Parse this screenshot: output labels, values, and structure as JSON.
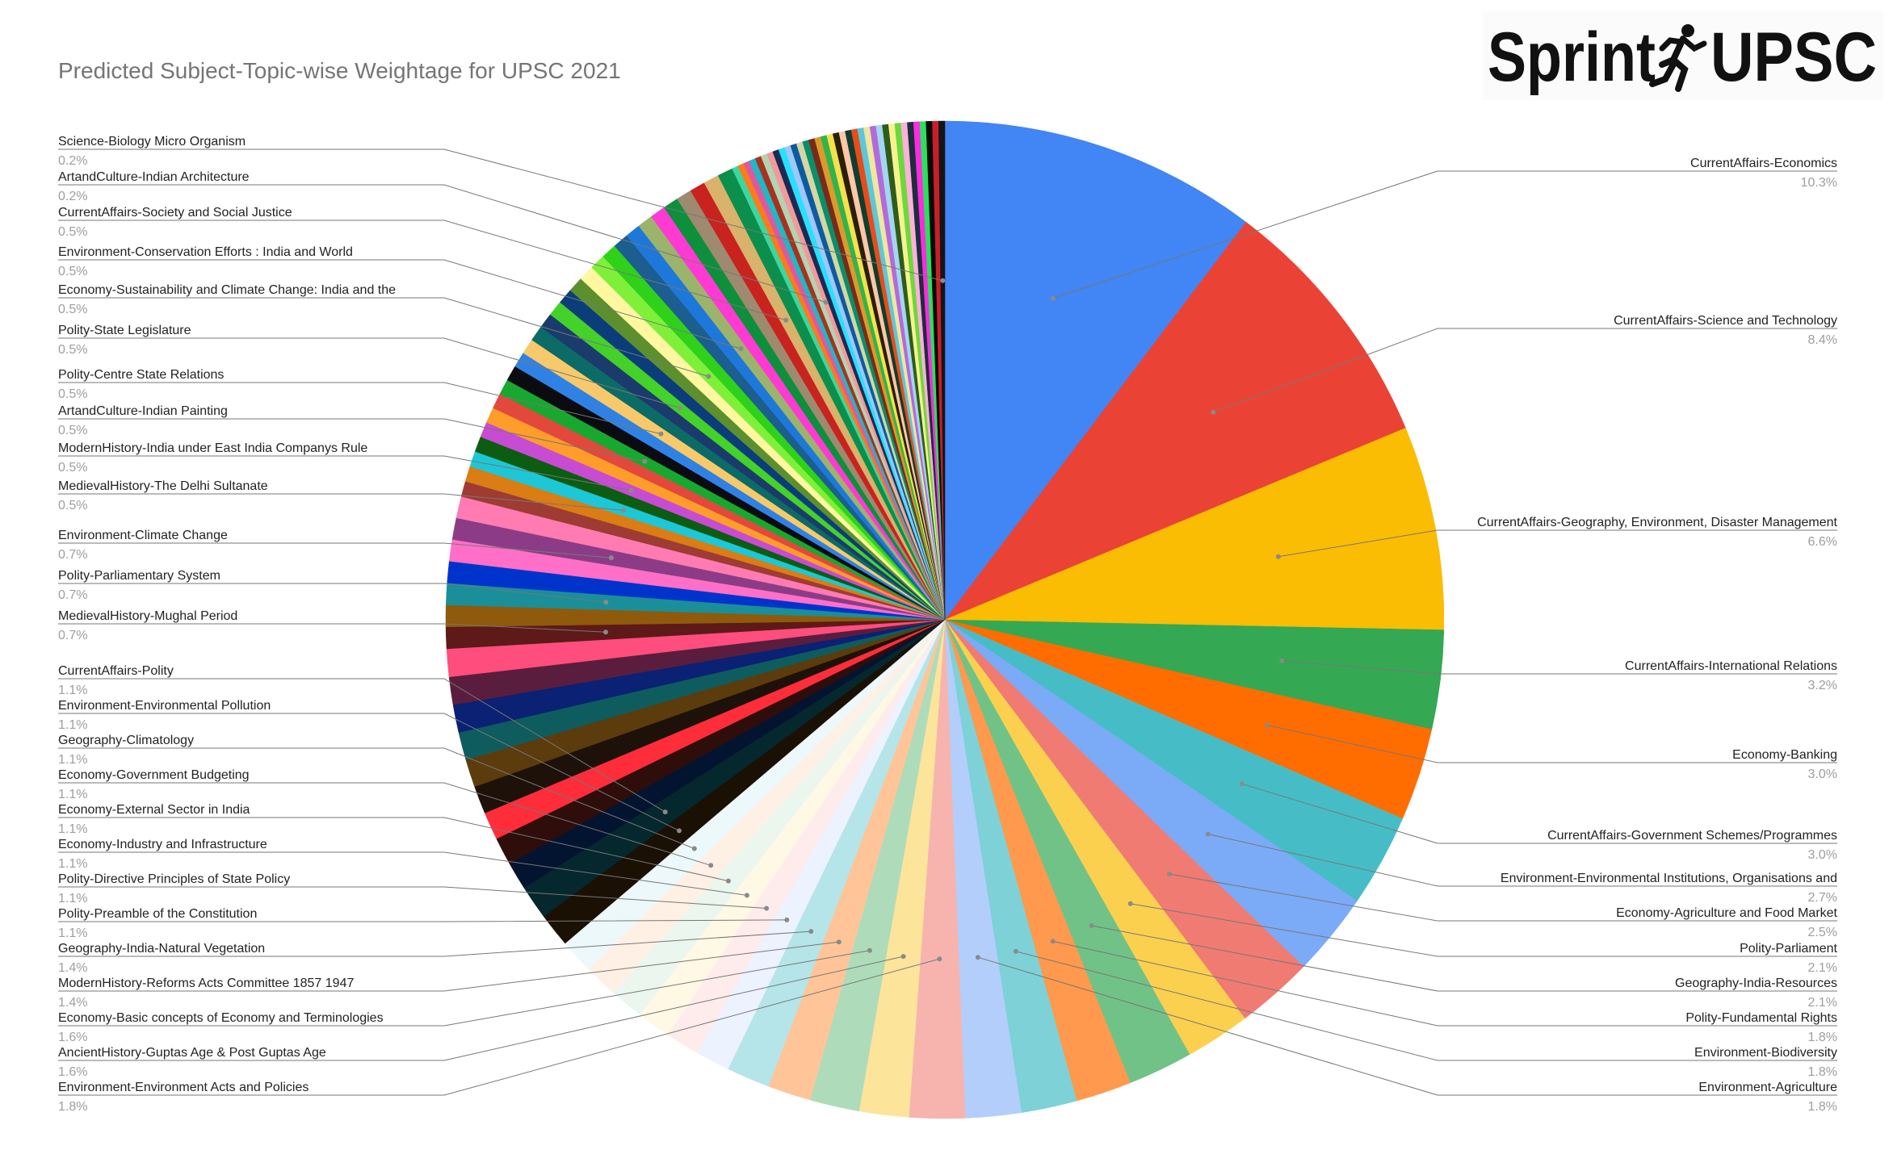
{
  "title": "Predicted Subject-Topic-wise Weightage for UPSC 2021",
  "logo": {
    "left_text": "Sprint",
    "right_text": "UPSC",
    "icon": "runner-icon"
  },
  "chart_data": {
    "type": "pie",
    "title": "Predicted Subject-Topic-wise Weightage for UPSC 2021",
    "start": "12 o'clock",
    "direction": "clockwise",
    "slices": [
      {
        "label": "CurrentAffairs-Economics",
        "value": 10.3,
        "color": "#4285f4"
      },
      {
        "label": "CurrentAffairs-Science and Technology",
        "value": 8.4,
        "color": "#ea4335"
      },
      {
        "label": "CurrentAffairs-Geography, Environment, Disaster Management",
        "value": 6.6,
        "color": "#fbbc04"
      },
      {
        "label": "CurrentAffairs-International Relations",
        "value": 3.2,
        "color": "#34a853"
      },
      {
        "label": "Economy-Banking",
        "value": 3.0,
        "color": "#ff6d01"
      },
      {
        "label": "CurrentAffairs-Government Schemes/Programmes",
        "value": 3.0,
        "color": "#46bdc6"
      },
      {
        "label": "Environment-Environmental Institutions, Organisations and",
        "value": 2.7,
        "color": "#7baaf7"
      },
      {
        "label": "Economy-Agriculture and Food Market",
        "value": 2.5,
        "color": "#f07b72"
      },
      {
        "label": "Polity-Parliament",
        "value": 2.1,
        "color": "#fcd04f"
      },
      {
        "label": "Geography-India-Resources",
        "value": 2.1,
        "color": "#71c287"
      },
      {
        "label": "Polity-Fundamental Rights",
        "value": 1.8,
        "color": "#ff994d"
      },
      {
        "label": "Environment-Biodiversity",
        "value": 1.8,
        "color": "#7ed1d7"
      },
      {
        "label": "Environment-Agriculture",
        "value": 1.8,
        "color": "#b3cefb"
      },
      {
        "label": "Environment-Environment Acts and Policies",
        "value": 1.8,
        "color": "#f7b4ae"
      },
      {
        "label": "AncientHistory-Guptas Age & Post Guptas Age",
        "value": 1.6,
        "color": "#fde49b"
      },
      {
        "label": "Economy-Basic concepts of Economy and Terminologies",
        "value": 1.6,
        "color": "#aedcba"
      },
      {
        "label": "ModernHistory-Reforms Acts Committee 1857 1947",
        "value": 1.4,
        "color": "#ffc599"
      },
      {
        "label": "Geography-India-Natural Vegetation",
        "value": 1.4,
        "color": "#b5e5e8"
      },
      {
        "label": "Polity-Preamble of the Constitution",
        "value": 1.1,
        "color": "#ecf2fe"
      },
      {
        "label": "Polity-Directive Principles of State Policy",
        "value": 1.1,
        "color": "#fdeceb"
      },
      {
        "label": "Economy-Industry and Infrastructure",
        "value": 1.1,
        "color": "#fff8e5"
      },
      {
        "label": "Economy-External Sector in India",
        "value": 1.1,
        "color": "#ebf6ee"
      },
      {
        "label": "Economy-Government Budgeting",
        "value": 1.1,
        "color": "#fff0e5"
      },
      {
        "label": "Geography-Climatology",
        "value": 1.1,
        "color": "#ecf8f9"
      },
      {
        "label": "Environment-Environmental Pollution",
        "value": 1.1,
        "color": "#1a1004"
      },
      {
        "label": "CurrentAffairs-Polity",
        "value": 1.1,
        "color": "#05272e"
      },
      {
        "label": "",
        "value": 0.9,
        "color": "#031431"
      },
      {
        "label": "",
        "value": 0.9,
        "color": "#2e0d0b"
      },
      {
        "label": "",
        "value": 0.9,
        "color": "#ff2d3a"
      },
      {
        "label": "",
        "value": 0.9,
        "color": "#1e110a"
      },
      {
        "label": "",
        "value": 0.9,
        "color": "#5c3b0c"
      },
      {
        "label": "",
        "value": 0.9,
        "color": "#0e5c5e"
      },
      {
        "label": "",
        "value": 0.9,
        "color": "#0a2174"
      },
      {
        "label": "",
        "value": 0.9,
        "color": "#5a1d3d"
      },
      {
        "label": "",
        "value": 0.9,
        "color": "#ff4d7d"
      },
      {
        "label": "MedievalHistory-Mughal Period",
        "value": 0.7,
        "color": "#5e1919"
      },
      {
        "label": "",
        "value": 0.7,
        "color": "#8f5a0c"
      },
      {
        "label": "Polity-Parliamentary System",
        "value": 0.7,
        "color": "#1a8f99"
      },
      {
        "label": "",
        "value": 0.7,
        "color": "#0033cc"
      },
      {
        "label": "",
        "value": 0.7,
        "color": "#ff6fc7"
      },
      {
        "label": "Environment-Climate Change",
        "value": 0.7,
        "color": "#8c3c87"
      },
      {
        "label": "",
        "value": 0.7,
        "color": "#ff7bb2"
      },
      {
        "label": "",
        "value": 0.5,
        "color": "#9e3b33"
      },
      {
        "label": "",
        "value": 0.5,
        "color": "#d97d14"
      },
      {
        "label": "MedievalHistory-The Delhi Sultanate",
        "value": 0.5,
        "color": "#1dc7d6"
      },
      {
        "label": "",
        "value": 0.5,
        "color": "#0c5c12"
      },
      {
        "label": "ModernHistory-India under East India Companys Rule",
        "value": 0.5,
        "color": "#c74cd1"
      },
      {
        "label": "",
        "value": 0.5,
        "color": "#ff9d2a"
      },
      {
        "label": "",
        "value": 0.5,
        "color": "#e3483c"
      },
      {
        "label": "ArtandCulture-Indian Painting",
        "value": 0.5,
        "color": "#18a82f"
      },
      {
        "label": "",
        "value": 0.5,
        "color": "#0b0b12"
      },
      {
        "label": "",
        "value": 0.5,
        "color": "#2f82e3"
      },
      {
        "label": "Polity-Centre State Relations",
        "value": 0.5,
        "color": "#f7c96b"
      },
      {
        "label": "",
        "value": 0.5,
        "color": "#0c6b66"
      },
      {
        "label": "",
        "value": 0.5,
        "color": "#1a3b6b"
      },
      {
        "label": "Polity-State Legislature",
        "value": 0.5,
        "color": "#43d12a"
      },
      {
        "label": "",
        "value": 0.5,
        "color": "#0a3d7a"
      },
      {
        "label": "",
        "value": 0.5,
        "color": "#5c8f2e"
      },
      {
        "label": "",
        "value": 0.5,
        "color": "#fff8a0"
      },
      {
        "label": "Economy-Sustainability and Climate Change: India and the",
        "value": 0.5,
        "color": "#7ef03a"
      },
      {
        "label": "",
        "value": 0.5,
        "color": "#2fd11a"
      },
      {
        "label": "",
        "value": 0.5,
        "color": "#1b5e8f"
      },
      {
        "label": "",
        "value": 0.5,
        "color": "#1e78d9"
      },
      {
        "label": "Environment-Conservation Efforts : India and World",
        "value": 0.5,
        "color": "#9bb36b"
      },
      {
        "label": "",
        "value": 0.5,
        "color": "#ff3ad2"
      },
      {
        "label": "",
        "value": 0.5,
        "color": "#0d8f3c"
      },
      {
        "label": "",
        "value": 0.5,
        "color": "#9e8a6e"
      },
      {
        "label": "",
        "value": 0.5,
        "color": "#c8231e"
      },
      {
        "label": "CurrentAffairs-Society and Social Justice",
        "value": 0.5,
        "color": "#d9b26b"
      },
      {
        "label": "",
        "value": 0.5,
        "color": "#0c8f4c"
      },
      {
        "label": "",
        "value": 0.2,
        "color": "#3dd6a0"
      },
      {
        "label": "",
        "value": 0.2,
        "color": "#ff7a1a"
      },
      {
        "label": "",
        "value": 0.2,
        "color": "#d95b9e"
      },
      {
        "label": "",
        "value": 0.2,
        "color": "#1fb8c7"
      },
      {
        "label": "",
        "value": 0.2,
        "color": "#a6331f"
      },
      {
        "label": "",
        "value": 0.2,
        "color": "#b3d3b3"
      },
      {
        "label": "ArtandCulture-Indian Architecture",
        "value": 0.2,
        "color": "#f09b9b"
      },
      {
        "label": "",
        "value": 0.2,
        "color": "#1c2a52"
      },
      {
        "label": "",
        "value": 0.2,
        "color": "#27e0ff"
      },
      {
        "label": "",
        "value": 0.2,
        "color": "#9fc7f7"
      },
      {
        "label": "",
        "value": 0.2,
        "color": "#0a5c9e"
      },
      {
        "label": "",
        "value": 0.2,
        "color": "#d6d6a3"
      },
      {
        "label": "",
        "value": 0.2,
        "color": "#0a8f6b"
      },
      {
        "label": "",
        "value": 0.2,
        "color": "#7a2a1a"
      },
      {
        "label": "",
        "value": 0.2,
        "color": "#d99c2a"
      },
      {
        "label": "",
        "value": 0.2,
        "color": "#33b34d"
      },
      {
        "label": "",
        "value": 0.2,
        "color": "#f7e14b"
      },
      {
        "label": "",
        "value": 0.2,
        "color": "#2a1f0a"
      },
      {
        "label": "",
        "value": 0.2,
        "color": "#ffc7a6"
      },
      {
        "label": "",
        "value": 0.2,
        "color": "#0f3d2e"
      },
      {
        "label": "",
        "value": 0.2,
        "color": "#e64d1a"
      },
      {
        "label": "",
        "value": 0.2,
        "color": "#5cc7d9"
      },
      {
        "label": "",
        "value": 0.2,
        "color": "#f0e6a0"
      },
      {
        "label": "",
        "value": 0.2,
        "color": "#b36bd9"
      },
      {
        "label": "",
        "value": 0.2,
        "color": "#a3d6f0"
      },
      {
        "label": "",
        "value": 0.2,
        "color": "#2e5c1a"
      },
      {
        "label": "",
        "value": 0.2,
        "color": "#f7f28f"
      },
      {
        "label": "",
        "value": 0.2,
        "color": "#6bd93d"
      },
      {
        "label": "",
        "value": 0.2,
        "color": "#ffb0d9"
      },
      {
        "label": "",
        "value": 0.2,
        "color": "#1a2e3d"
      },
      {
        "label": "",
        "value": 0.2,
        "color": "#ff2ae0"
      },
      {
        "label": "",
        "value": 0.2,
        "color": "#2ae05c"
      },
      {
        "label": "",
        "value": 0.2,
        "color": "#0a0a0a"
      },
      {
        "label": "",
        "value": 0.2,
        "color": "#c71f2a"
      },
      {
        "label": "Science-Biology Micro Organism",
        "value": 0.2,
        "color": "#151515"
      }
    ],
    "legend": "none"
  },
  "labels_left": [
    {
      "label": "Science-Biology Micro Organism",
      "pct": "0.2%"
    },
    {
      "label": "ArtandCulture-Indian Architecture",
      "pct": "0.2%"
    },
    {
      "label": "CurrentAffairs-Society and Social Justice",
      "pct": "0.5%"
    },
    {
      "label": "Environment-Conservation Efforts : India and World",
      "pct": "0.5%"
    },
    {
      "label": "Economy-Sustainability and Climate Change: India and the",
      "pct": "0.5%"
    },
    {
      "label": "Polity-State Legislature",
      "pct": "0.5%"
    },
    {
      "label": "Polity-Centre State Relations",
      "pct": "0.5%"
    },
    {
      "label": "ArtandCulture-Indian Painting",
      "pct": "0.5%"
    },
    {
      "label": "ModernHistory-India under East India Companys Rule",
      "pct": "0.5%"
    },
    {
      "label": "MedievalHistory-The Delhi Sultanate",
      "pct": "0.5%"
    },
    {
      "label": "Environment-Climate Change",
      "pct": "0.7%"
    },
    {
      "label": "Polity-Parliamentary System",
      "pct": "0.7%"
    },
    {
      "label": "MedievalHistory-Mughal Period",
      "pct": "0.7%"
    },
    {
      "label": "CurrentAffairs-Polity",
      "pct": "1.1%"
    },
    {
      "label": "Environment-Environmental Pollution",
      "pct": "1.1%"
    },
    {
      "label": "Geography-Climatology",
      "pct": "1.1%"
    },
    {
      "label": "Economy-Government Budgeting",
      "pct": "1.1%"
    },
    {
      "label": "Economy-External Sector in India",
      "pct": "1.1%"
    },
    {
      "label": "Economy-Industry and Infrastructure",
      "pct": "1.1%"
    },
    {
      "label": "Polity-Directive Principles of State Policy",
      "pct": "1.1%"
    },
    {
      "label": "Polity-Preamble of the Constitution",
      "pct": "1.1%"
    },
    {
      "label": "Geography-India-Natural Vegetation",
      "pct": "1.4%"
    },
    {
      "label": "ModernHistory-Reforms Acts Committee 1857 1947",
      "pct": "1.4%"
    },
    {
      "label": "Economy-Basic concepts of Economy and Terminologies",
      "pct": "1.6%"
    },
    {
      "label": "AncientHistory-Guptas Age & Post Guptas Age",
      "pct": "1.6%"
    },
    {
      "label": "Environment-Environment Acts and Policies",
      "pct": "1.8%"
    }
  ],
  "labels_right": [
    {
      "label": "CurrentAffairs-Economics",
      "pct": "10.3%"
    },
    {
      "label": "CurrentAffairs-Science and Technology",
      "pct": "8.4%"
    },
    {
      "label": "CurrentAffairs-Geography, Environment, Disaster Management",
      "pct": "6.6%"
    },
    {
      "label": "CurrentAffairs-International Relations",
      "pct": "3.2%"
    },
    {
      "label": "Economy-Banking",
      "pct": "3.0%"
    },
    {
      "label": "CurrentAffairs-Government Schemes/Programmes",
      "pct": "3.0%"
    },
    {
      "label": "Environment-Environmental Institutions, Organisations and",
      "pct": "2.7%"
    },
    {
      "label": "Economy-Agriculture and Food Market",
      "pct": "2.5%"
    },
    {
      "label": "Polity-Parliament",
      "pct": "2.1%"
    },
    {
      "label": "Geography-India-Resources",
      "pct": "2.1%"
    },
    {
      "label": "Polity-Fundamental Rights",
      "pct": "1.8%"
    },
    {
      "label": "Environment-Biodiversity",
      "pct": "1.8%"
    },
    {
      "label": "Environment-Agriculture",
      "pct": "1.8%"
    }
  ]
}
